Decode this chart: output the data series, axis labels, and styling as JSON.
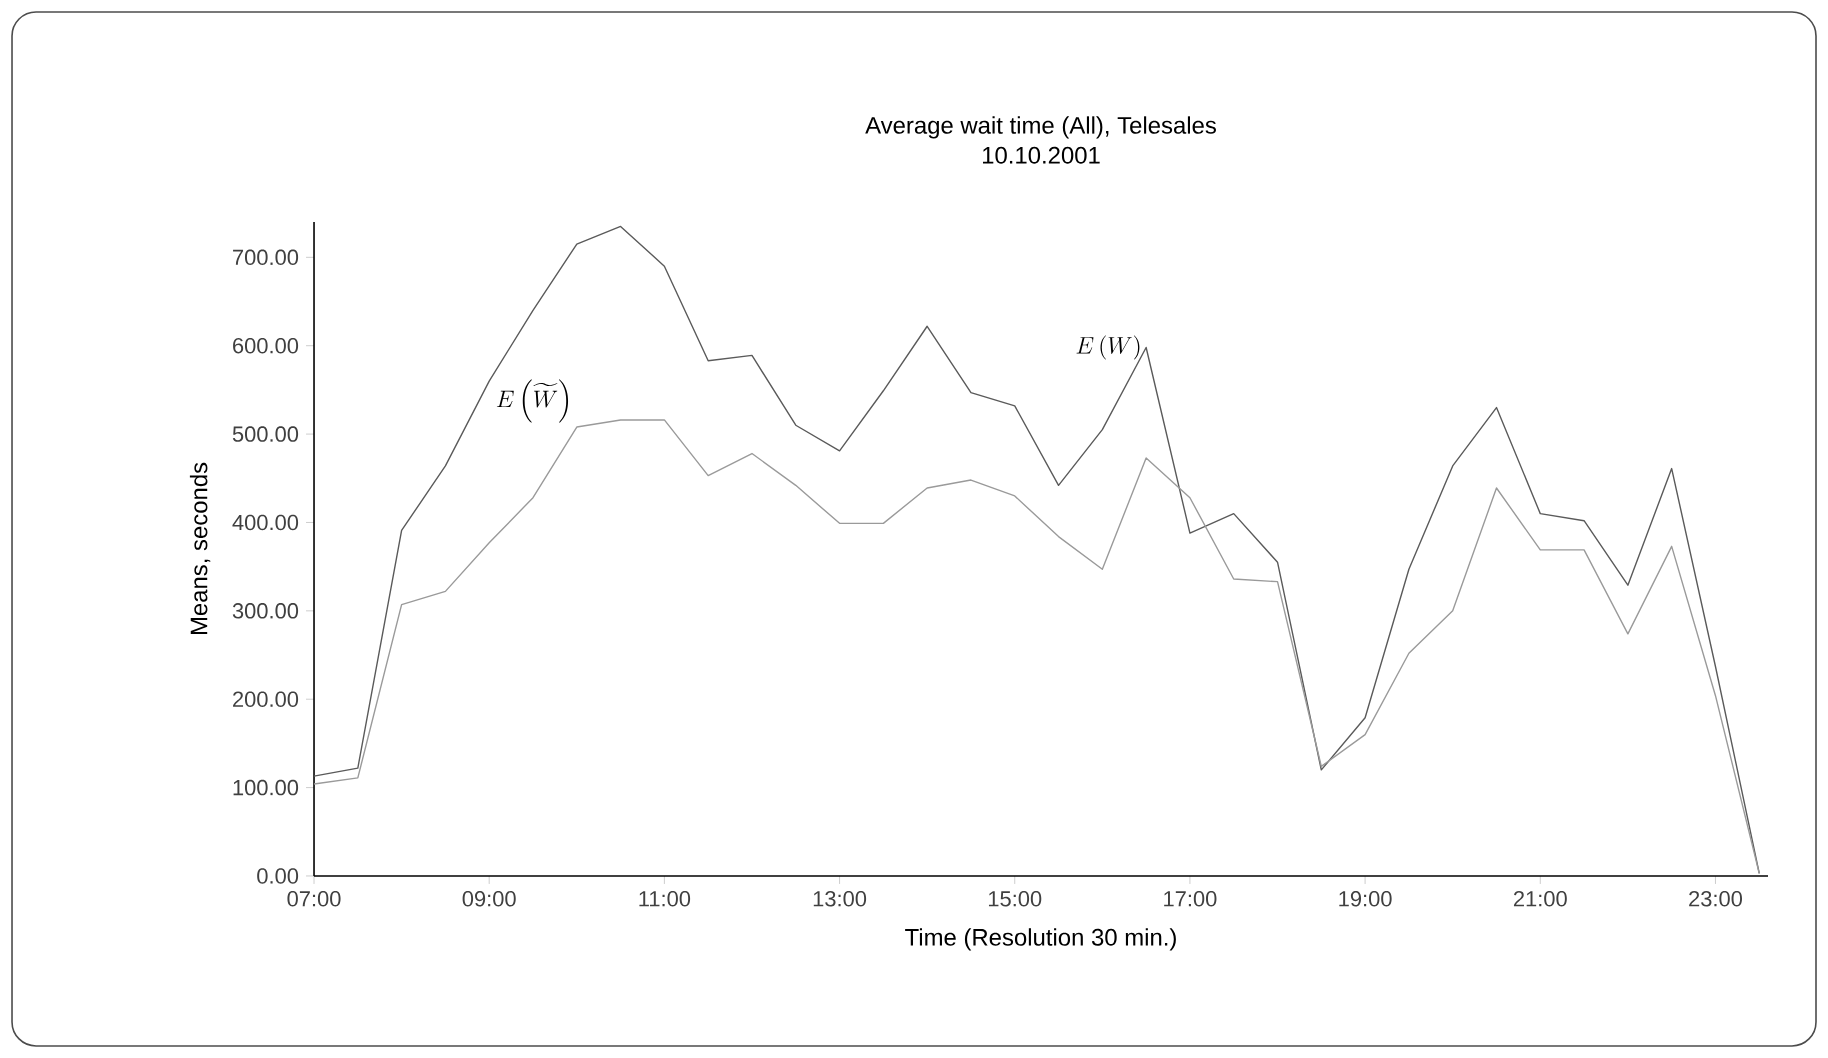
{
  "chart_data": {
    "type": "line",
    "title": "Average wait time (All), Telesales",
    "subtitle": "10.10.2001",
    "xlabel": "Time (Resolution 30 min.)",
    "ylabel": "Means, seconds",
    "x": [
      7,
      7.5,
      8,
      8.5,
      9,
      9.5,
      10,
      10.5,
      11,
      11.5,
      12,
      12.5,
      13,
      13.5,
      14,
      14.5,
      15,
      15.5,
      16,
      16.5,
      17,
      17.5,
      18,
      18.5,
      19,
      19.5,
      20,
      20.5,
      21,
      21.5,
      22,
      22.5,
      23,
      23.5
    ],
    "series": [
      {
        "name": "E\\left(W\\right)",
        "color": "#5a5a5a",
        "values": [
          113,
          122,
          391,
          464,
          560,
          640,
          715,
          735,
          690,
          583,
          589,
          510,
          481,
          549,
          622,
          547,
          532,
          442,
          505,
          598,
          388,
          410,
          355,
          120,
          179,
          347,
          464,
          530,
          410,
          402,
          329,
          461,
          237,
          3
        ]
      },
      {
        "name": "E\\left(\\widetilde{W}\\right)",
        "color": "#9a9a9a",
        "values": [
          104,
          111,
          307,
          322,
          377,
          428,
          508,
          516,
          516,
          453,
          478,
          442,
          399,
          399,
          439,
          448,
          430,
          384,
          347,
          473,
          428,
          336,
          333,
          124,
          160,
          252,
          300,
          439,
          369,
          369,
          274,
          373,
          204,
          3
        ]
      }
    ],
    "xlim": [
      7,
      23.6
    ],
    "ylim": [
      0,
      740
    ],
    "xticks": [
      {
        "value": 7,
        "label": "07:00"
      },
      {
        "value": 9,
        "label": "09:00"
      },
      {
        "value": 11,
        "label": "11:00"
      },
      {
        "value": 13,
        "label": "13:00"
      },
      {
        "value": 15,
        "label": "15:00"
      },
      {
        "value": 17,
        "label": "17:00"
      },
      {
        "value": 19,
        "label": "19:00"
      },
      {
        "value": 21,
        "label": "21:00"
      },
      {
        "value": 23,
        "label": "23:00"
      }
    ],
    "yticks": [
      {
        "value": 0,
        "label": "0.00"
      },
      {
        "value": 100,
        "label": "100.00"
      },
      {
        "value": 200,
        "label": "200.00"
      },
      {
        "value": 300,
        "label": "300.00"
      },
      {
        "value": 400,
        "label": "400.00"
      },
      {
        "value": 500,
        "label": "500.00"
      },
      {
        "value": 600,
        "label": "600.00"
      },
      {
        "value": 700,
        "label": "700.00"
      }
    ],
    "grid": false,
    "legend": false,
    "marker": "none",
    "line_style": "solid"
  }
}
